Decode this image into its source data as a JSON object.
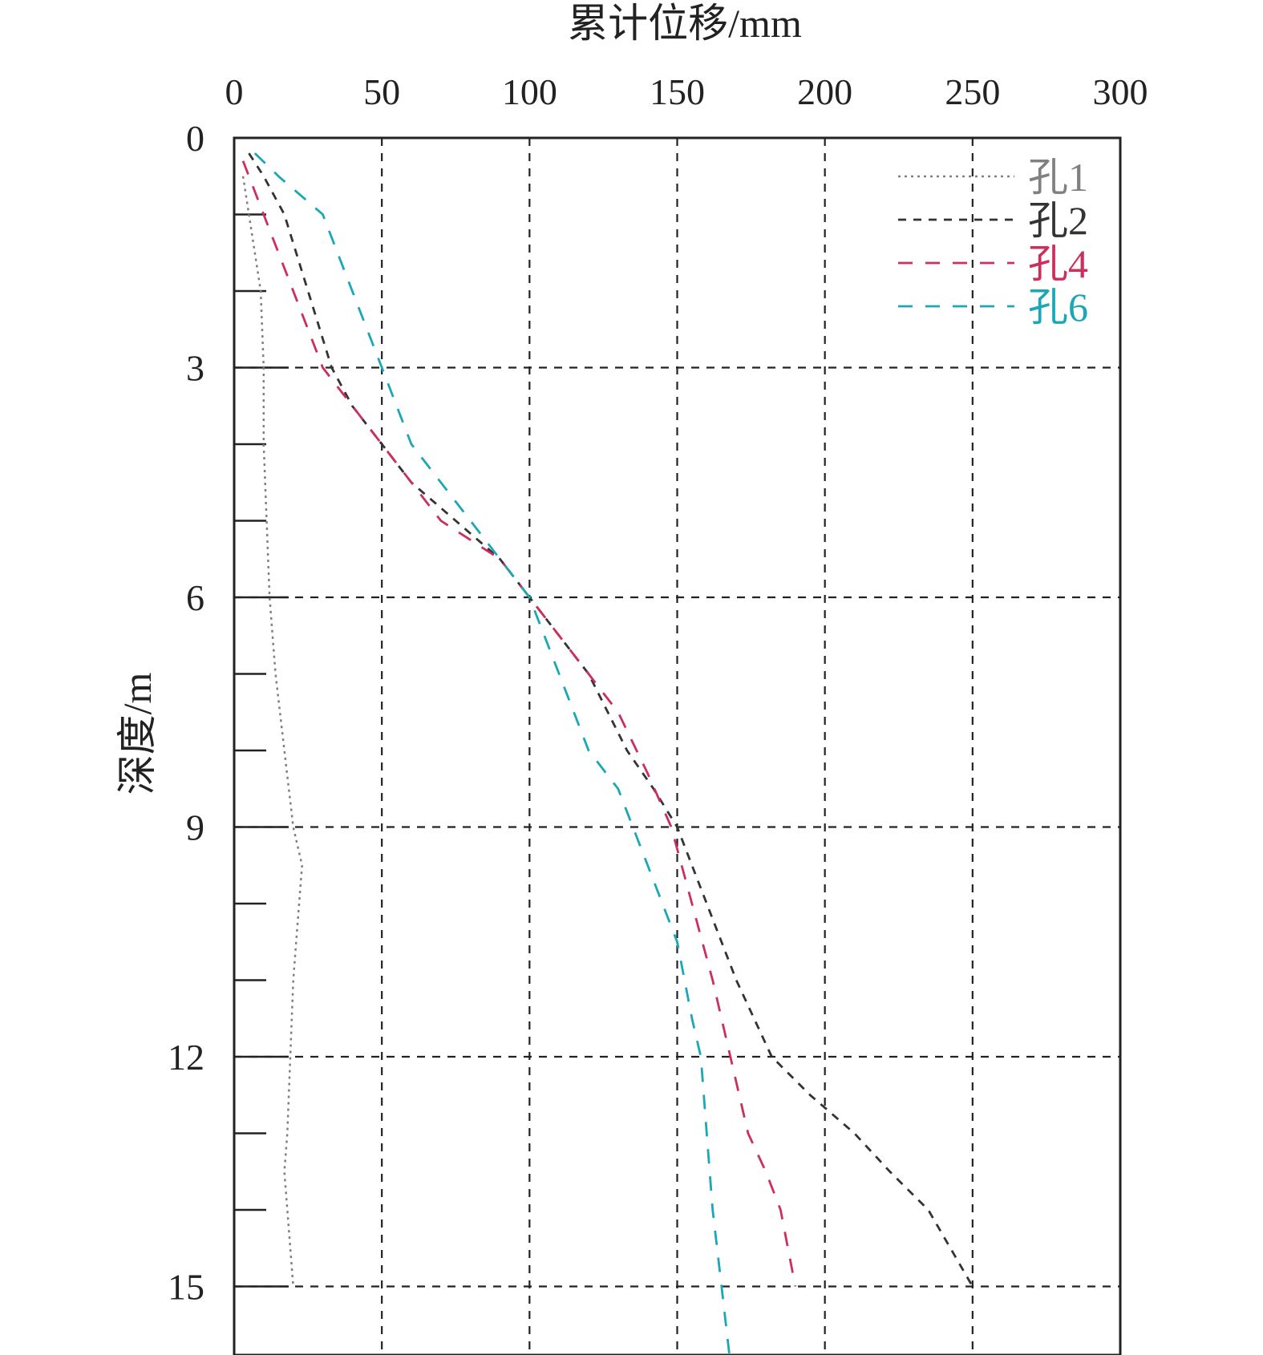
{
  "chart_data": {
    "type": "line",
    "title": "",
    "xlabel": "累计位移/mm",
    "ylabel": "深度/m",
    "xlim": [
      0,
      300
    ],
    "ylim": [
      0,
      16
    ],
    "x_ticks": [
      0,
      50,
      100,
      150,
      200,
      250,
      300
    ],
    "x_tick_labels": [
      "0",
      "50",
      "100",
      "150",
      "200",
      "250",
      "300"
    ],
    "y_ticks": [
      0,
      3,
      6,
      9,
      12,
      15
    ],
    "y_tick_labels": [
      "0",
      "3",
      "6",
      "9",
      "12",
      "15"
    ],
    "y_minor_ticks": [
      1,
      2,
      4,
      5,
      7,
      8,
      10,
      11,
      13,
      14
    ],
    "grid": true,
    "y_axis_inverted": true,
    "x_axis_position": "top",
    "legend_position": "top-right",
    "series": [
      {
        "name": "孔1",
        "color": "#808080",
        "style": "dotted",
        "points": [
          [
            3,
            0.5
          ],
          [
            5,
            1
          ],
          [
            7,
            1.5
          ],
          [
            9,
            2
          ],
          [
            10,
            3
          ],
          [
            10,
            4
          ],
          [
            11,
            5
          ],
          [
            12,
            6
          ],
          [
            14,
            7
          ],
          [
            17,
            8
          ],
          [
            20,
            9
          ],
          [
            23,
            9.5
          ],
          [
            22,
            10
          ],
          [
            20,
            11
          ],
          [
            19,
            12
          ],
          [
            18,
            13
          ],
          [
            17,
            13.5
          ],
          [
            18,
            14
          ],
          [
            20,
            15
          ]
        ]
      },
      {
        "name": "孔2",
        "color": "#333333",
        "style": "dashed",
        "points": [
          [
            5,
            0.2
          ],
          [
            10,
            0.5
          ],
          [
            17,
            1
          ],
          [
            25,
            2
          ],
          [
            33,
            3
          ],
          [
            40,
            3.5
          ],
          [
            50,
            4
          ],
          [
            60,
            4.5
          ],
          [
            75,
            5
          ],
          [
            90,
            5.5
          ],
          [
            100,
            6
          ],
          [
            110,
            6.5
          ],
          [
            120,
            7
          ],
          [
            133,
            8
          ],
          [
            142,
            8.5
          ],
          [
            150,
            9
          ],
          [
            160,
            10
          ],
          [
            170,
            11
          ],
          [
            182,
            12
          ],
          [
            195,
            12.5
          ],
          [
            210,
            13
          ],
          [
            222,
            13.5
          ],
          [
            235,
            14
          ],
          [
            250,
            15
          ]
        ]
      },
      {
        "name": "孔4",
        "color": "#cc2f5c",
        "style": "dashed",
        "points": [
          [
            3,
            0.3
          ],
          [
            10,
            1
          ],
          [
            20,
            2
          ],
          [
            30,
            3
          ],
          [
            50,
            4
          ],
          [
            70,
            5
          ],
          [
            90,
            5.5
          ],
          [
            100,
            6
          ],
          [
            110,
            6.5
          ],
          [
            120,
            7
          ],
          [
            130,
            7.5
          ],
          [
            140,
            8.3
          ],
          [
            148,
            9
          ],
          [
            155,
            10
          ],
          [
            162,
            11
          ],
          [
            168,
            12
          ],
          [
            174,
            13
          ],
          [
            180,
            13.5
          ],
          [
            185,
            14
          ],
          [
            190,
            15
          ]
        ]
      },
      {
        "name": "孔6",
        "color": "#1aa8b6",
        "style": "dashed",
        "points": [
          [
            7,
            0.2
          ],
          [
            15,
            0.5
          ],
          [
            30,
            1
          ],
          [
            40,
            2
          ],
          [
            50,
            3
          ],
          [
            60,
            4
          ],
          [
            70,
            4.5
          ],
          [
            80,
            5
          ],
          [
            90,
            5.5
          ],
          [
            100,
            6
          ],
          [
            105,
            6.5
          ],
          [
            110,
            7
          ],
          [
            120,
            8
          ],
          [
            130,
            8.5
          ],
          [
            140,
            9.5
          ],
          [
            150,
            10.5
          ],
          [
            155,
            11.5
          ],
          [
            158,
            12
          ],
          [
            160,
            13
          ],
          [
            162,
            14
          ],
          [
            165,
            15
          ],
          [
            168,
            16
          ]
        ]
      }
    ]
  }
}
